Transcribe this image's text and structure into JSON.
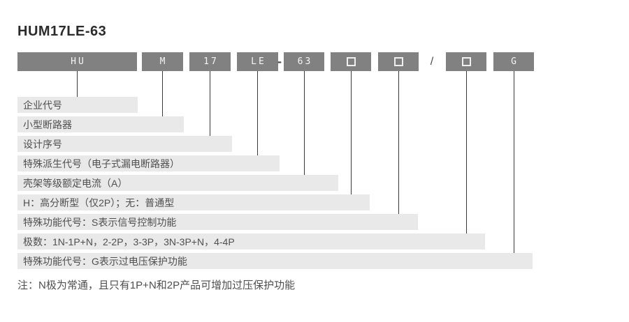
{
  "title": "HUM17LE-63",
  "note": "注：N极为常通，且只有1P+N和2P产品可增加过压保护功能",
  "separators": {
    "dash": "-",
    "slash": "/"
  },
  "colors": {
    "box_bg": "#818181",
    "box_text": "#f5f5f5",
    "bar_bg": "#e9e9e9",
    "bar_text": "#4f4f4f",
    "line": "#3a3a3a",
    "title": "#2b2b2b"
  },
  "segments": [
    {
      "label": "HU",
      "glyph": "text",
      "desc": "企业代号"
    },
    {
      "label": "M",
      "glyph": "text",
      "desc": "小型断路器"
    },
    {
      "label": "17",
      "glyph": "text",
      "desc": "设计序号"
    },
    {
      "label": "LE",
      "glyph": "text",
      "desc": "特殊派生代号（电子式漏电断路器）"
    },
    {
      "label": "63",
      "glyph": "text",
      "desc": "壳架等级额定电流（A）"
    },
    {
      "label": "□",
      "glyph": "square",
      "desc": "H：高分断型（仅2P）；无：普通型"
    },
    {
      "label": "□",
      "glyph": "square",
      "desc": "特殊功能代号：S表示信号控制功能"
    },
    {
      "label": "□",
      "glyph": "square",
      "desc": "极数：1N-1P+N，2-2P，3-3P，3N-3P+N，4-4P"
    },
    {
      "label": "G",
      "glyph": "text",
      "desc": "特殊功能代号：G表示过电压保护功能"
    }
  ]
}
